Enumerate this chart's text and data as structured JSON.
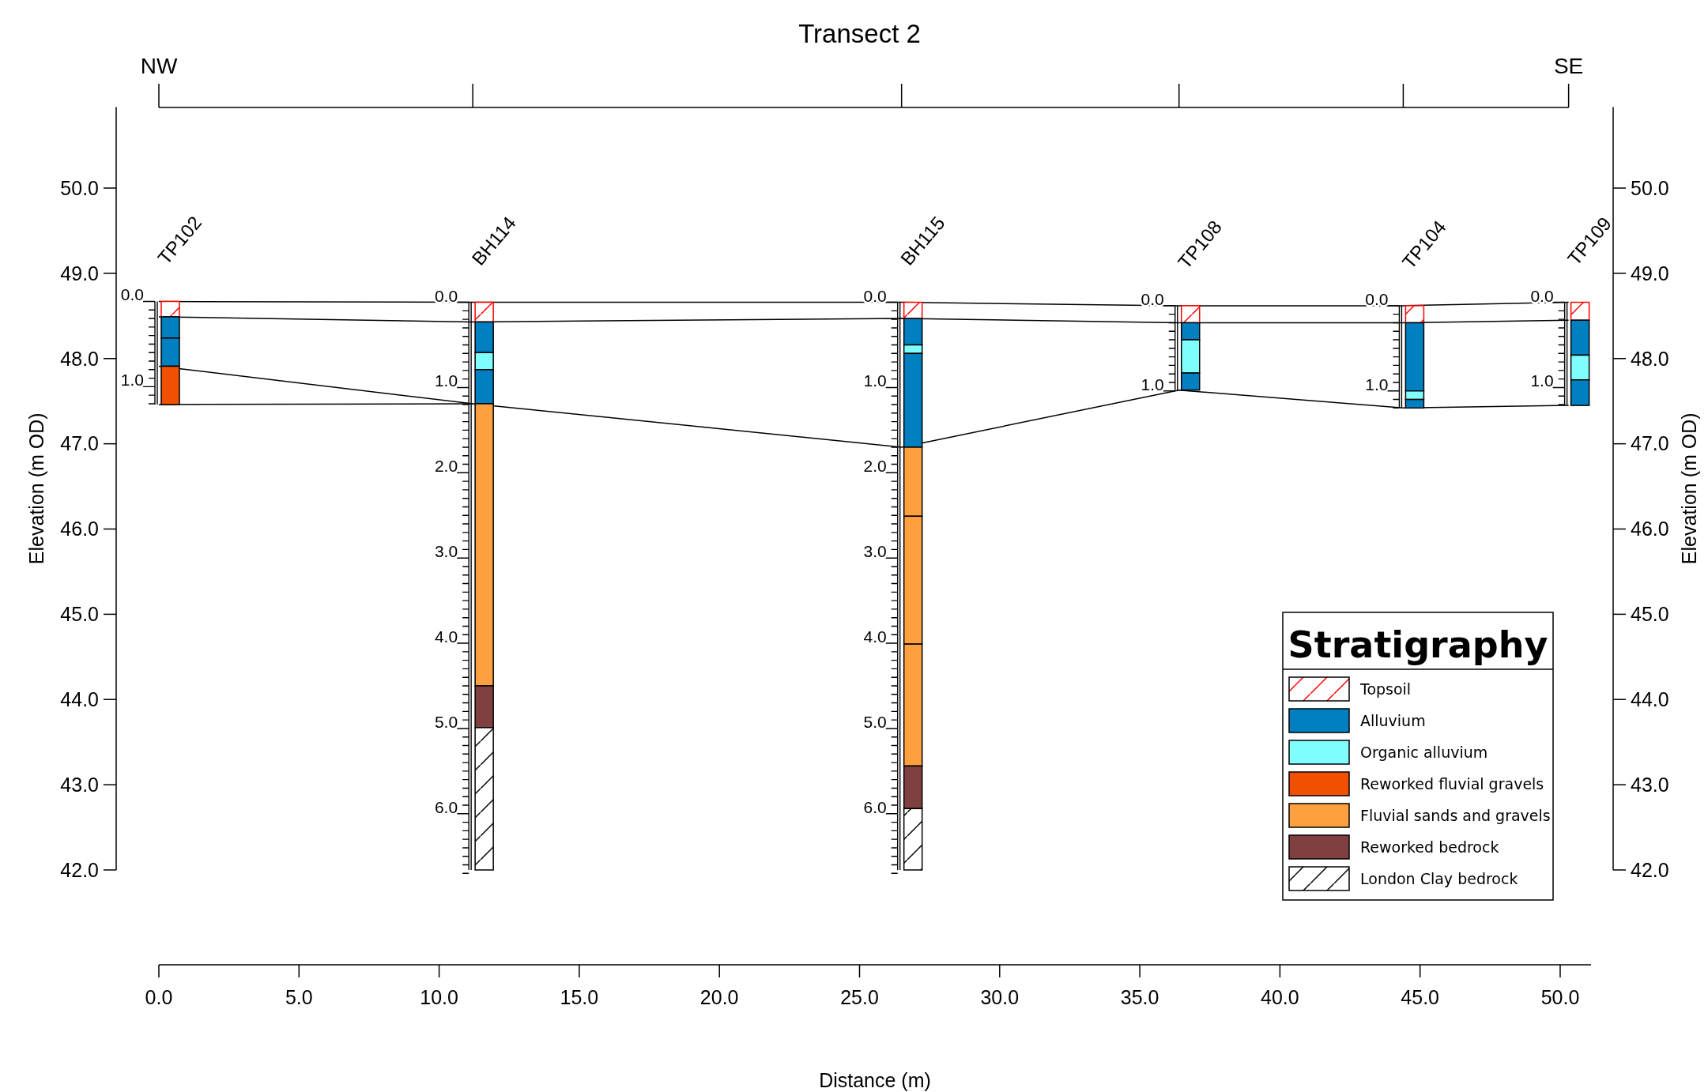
{
  "chart_data": {
    "type": "bar",
    "title": "Transect 2",
    "xlabel": "Distance (m)",
    "ylabel": "Elevation (m OD)",
    "y2label": "Elevation (m OD)",
    "legend_title": "Stratigraphy",
    "legend": "bottom right",
    "xlim": [
      0,
      51.1
    ],
    "xticks": [
      {
        "value": 0,
        "label": "0.0"
      },
      {
        "value": 5,
        "label": "5.0"
      },
      {
        "value": 10,
        "label": "10.0"
      },
      {
        "value": 15,
        "label": "15.0"
      },
      {
        "value": 20,
        "label": "20.0"
      },
      {
        "value": 25,
        "label": "25.0"
      },
      {
        "value": 30,
        "label": "30.0"
      },
      {
        "value": 35,
        "label": "35.0"
      },
      {
        "value": 40,
        "label": "40.0"
      },
      {
        "value": 45,
        "label": "45.0"
      },
      {
        "value": 50,
        "label": "50.0"
      }
    ],
    "ylim": [
      42,
      50.95
    ],
    "yticks": [
      {
        "value": 42,
        "label": "42.0"
      },
      {
        "value": 43,
        "label": "43.0"
      },
      {
        "value": 44,
        "label": "44.0"
      },
      {
        "value": 45,
        "label": "45.0"
      },
      {
        "value": 46,
        "label": "46.0"
      },
      {
        "value": 47,
        "label": "47.0"
      },
      {
        "value": 48,
        "label": "48.0"
      },
      {
        "value": 49,
        "label": "49.0"
      },
      {
        "value": 50,
        "label": "50.0"
      }
    ],
    "y2lim": [
      42,
      50.95
    ],
    "y2ticks": [
      {
        "value": 42,
        "label": "42.0"
      },
      {
        "value": 43,
        "label": "43.0"
      },
      {
        "value": 44,
        "label": "44.0"
      },
      {
        "value": 45,
        "label": "45.0"
      },
      {
        "value": 46,
        "label": "46.0"
      },
      {
        "value": 47,
        "label": "47.0"
      },
      {
        "value": 48,
        "label": "48.0"
      },
      {
        "value": 49,
        "label": "49.0"
      },
      {
        "value": 50,
        "label": "50.0"
      }
    ],
    "series": [
      {
        "name": "Topsoil",
        "color": "#ff0000",
        "x": [
          0,
          11.2,
          26.5,
          36.4,
          44.4,
          50.3
        ],
        "base": [
          48.49,
          48.43,
          48.47,
          48.42,
          48.42,
          48.45
        ],
        "values": [
          0.18,
          0.23,
          0.19,
          0.2,
          0.2,
          0.21
        ]
      },
      {
        "name": "Alluvium",
        "color": "#0080c0",
        "x": [
          0,
          11.2,
          26.5,
          36.4,
          44.4,
          50.3
        ],
        "base": [
          48.24,
          48.07,
          48.16,
          48.22,
          47.62,
          48.04
        ],
        "values": [
          0.25,
          0.36,
          0.31,
          0.2,
          0.8,
          0.41
        ]
      },
      {
        "color": "#0080c0",
        "x": [
          0
        ],
        "base": [
          47.91
        ],
        "values": [
          0.33
        ]
      },
      {
        "name": "Organic alluvium",
        "color": "#80ffff",
        "x": [
          11.2,
          26.5,
          36.4,
          44.4,
          50.3
        ],
        "base": [
          47.87,
          48.06,
          47.83,
          47.52,
          47.75
        ],
        "values": [
          0.2,
          0.1,
          0.39,
          0.1,
          0.29
        ]
      },
      {
        "color": "#0080c0",
        "x": [
          11.2,
          26.5,
          36.4,
          44.4,
          50.3
        ],
        "base": [
          47.47,
          46.96,
          47.63,
          47.42,
          47.45
        ],
        "values": [
          0.4,
          1.1,
          0.2,
          0.1,
          0.3
        ]
      },
      {
        "name": "Reworked fluvial gravels",
        "color": "#f05000",
        "x": [
          0
        ],
        "base": [
          47.46
        ],
        "values": [
          0.45
        ]
      },
      {
        "name": "Fluvial sands and gravels",
        "color": "#ffa040",
        "x": [
          11.2,
          26.5
        ],
        "base": [
          44.16,
          46.15
        ],
        "values": [
          3.31,
          0.81
        ]
      },
      {
        "color": "#ffa040",
        "x": [
          26.5
        ],
        "base": [
          44.65
        ],
        "values": [
          1.5
        ]
      },
      {
        "color": "#ffa040",
        "x": [
          26.5
        ],
        "base": [
          43.22
        ],
        "values": [
          1.43
        ]
      },
      {
        "name": "Reworked bedrock",
        "color": "#804040",
        "x": [
          11.2,
          26.5
        ],
        "base": [
          43.67,
          42.72
        ],
        "values": [
          0.49,
          0.5
        ]
      },
      {
        "name": "London Clay bedrock",
        "color": "#000000",
        "x": [
          11.2,
          26.5
        ],
        "base": [
          42.0,
          42.0
        ],
        "values": [
          1.67,
          0.72
        ]
      },
      {
        "type": "line",
        "color": "#000000",
        "x": [
          0,
          11.2,
          26.5,
          36.4,
          44.4,
          50.3
        ],
        "values": [
          48.67,
          48.66,
          48.66,
          48.62,
          48.62,
          48.66
        ]
      },
      {
        "type": "line",
        "color": "#000000",
        "x": [
          0,
          11.2,
          26.5,
          36.4,
          44.4,
          50.3
        ],
        "values": [
          48.49,
          48.43,
          48.47,
          48.42,
          48.42,
          48.45
        ]
      },
      {
        "type": "line",
        "color": "#000000",
        "x": [
          0,
          11.2,
          26.5,
          36.4,
          44.4,
          50.3
        ],
        "values": [
          47.91,
          47.47,
          46.96,
          47.63,
          47.42,
          47.45
        ]
      },
      {
        "type": "line",
        "color": "#000000",
        "x": [
          0,
          11.2
        ],
        "values": [
          47.46,
          47.47
        ]
      }
    ],
    "annotations": [
      "NW",
      "SE",
      "TP102",
      "BH114",
      "BH115",
      "TP108",
      "TP104",
      "TP109",
      {
        "text": "0.0",
        "x": 0,
        "y": 48.67
      },
      {
        "text": "1.0",
        "x": 0,
        "y": 47.67
      },
      {
        "text": "0.0",
        "x": 11.2,
        "y": 48.66
      },
      {
        "text": "1.0",
        "x": 11.2,
        "y": 47.66
      },
      {
        "text": "2.0",
        "x": 11.2,
        "y": 46.66
      },
      {
        "text": "3.0",
        "x": 11.2,
        "y": 45.66
      },
      {
        "text": "4.0",
        "x": 11.2,
        "y": 44.66
      },
      {
        "text": "5.0",
        "x": 11.2,
        "y": 43.66
      },
      {
        "text": "6.0",
        "x": 11.2,
        "y": 42.66
      },
      {
        "text": "0.0",
        "x": 26.5,
        "y": 48.66
      },
      {
        "text": "1.0",
        "x": 26.5,
        "y": 47.66
      },
      {
        "text": "2.0",
        "x": 26.5,
        "y": 46.66
      },
      {
        "text": "3.0",
        "x": 26.5,
        "y": 45.66
      },
      {
        "text": "4.0",
        "x": 26.5,
        "y": 44.66
      },
      {
        "text": "5.0",
        "x": 26.5,
        "y": 43.66
      },
      {
        "text": "6.0",
        "x": 26.5,
        "y": 42.66
      },
      {
        "text": "0.0",
        "x": 36.4,
        "y": 48.62
      },
      {
        "text": "1.0",
        "x": 36.4,
        "y": 47.62
      },
      {
        "text": "0.0",
        "x": 44.4,
        "y": 48.62
      },
      {
        "text": "1.0",
        "x": 44.4,
        "y": 47.62
      },
      {
        "text": "0.0",
        "x": 50.3,
        "y": 48.66
      },
      {
        "text": "1.0",
        "x": 50.3,
        "y": 47.66
      }
    ]
  }
}
